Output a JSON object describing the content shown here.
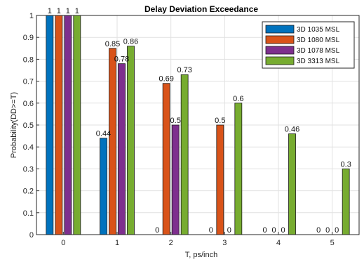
{
  "chart_data": {
    "type": "bar",
    "title": "Delay Deviation Exceedance",
    "xlabel": "T, ps/inch",
    "ylabel": "Probability(DD>=T)",
    "categories": [
      "0",
      "1",
      "2",
      "3",
      "4",
      "5"
    ],
    "ylim": [
      0,
      1
    ],
    "yticks": [
      "0",
      "0.1",
      "0.2",
      "0.3",
      "0.4",
      "0.5",
      "0.6",
      "0.7",
      "0.8",
      "0.9",
      "1"
    ],
    "grid": true,
    "legend_position": "top-right",
    "series": [
      {
        "name": "3D 1035 MSL",
        "color": "#0072bd",
        "values": [
          1,
          0.44,
          0,
          0,
          0,
          0
        ],
        "labels": [
          "1",
          "0.44",
          "0",
          "0",
          "0",
          "0"
        ]
      },
      {
        "name": "3D 1080 MSL",
        "color": "#d95319",
        "values": [
          1,
          0.85,
          0.69,
          0.5,
          0,
          0
        ],
        "labels": [
          "1",
          "0.85",
          "0.69",
          "0.5",
          "0",
          "0"
        ]
      },
      {
        "name": "3D 1078 MSL",
        "color": "#7e2f8e",
        "values": [
          1,
          0.78,
          0.5,
          0,
          0,
          0
        ],
        "labels": [
          "1",
          "0.78",
          "0.5",
          "0",
          "0",
          "0"
        ]
      },
      {
        "name": "3D 3313 MSL",
        "color": "#77ac30",
        "values": [
          1,
          0.86,
          0.73,
          0.6,
          0.46,
          0.3
        ],
        "labels": [
          "1",
          "0.86",
          "0.73",
          "0.6",
          "0.46",
          "0.3"
        ]
      }
    ]
  }
}
